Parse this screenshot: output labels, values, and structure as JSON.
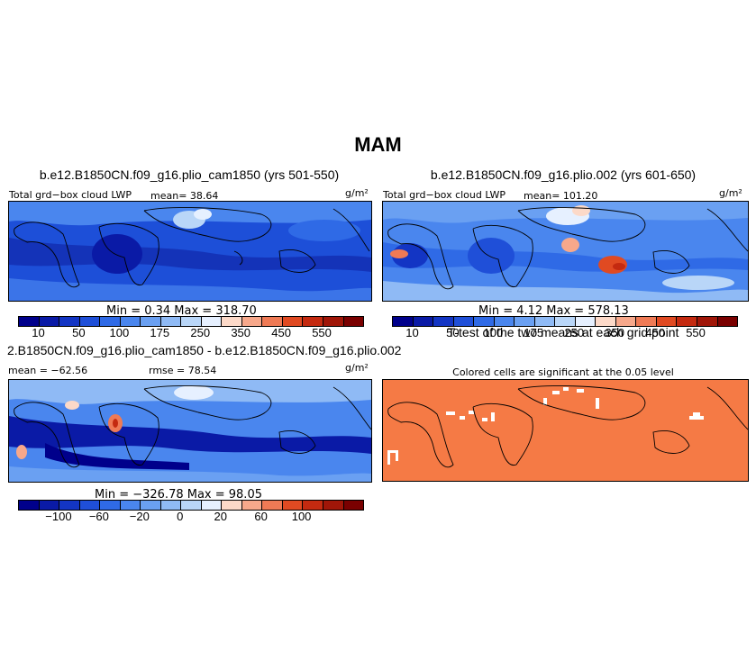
{
  "title": "MAM",
  "panels": {
    "p1": {
      "title": "b.e12.B1850CN.f09_g16.plio_cam1850 (yrs 501-550)",
      "left_label": "Total grd−box cloud LWP",
      "mean": "mean=  38.64",
      "units": "g/m²",
      "minmax": "Min =    0.34  Max = 318.70"
    },
    "p2": {
      "title": "b.e12.B1850CN.f09_g16.plio.002 (yrs 601-650)",
      "left_label": "Total grd−box cloud LWP",
      "mean": "mean= 101.20",
      "units": "g/m²",
      "minmax": "Min =    4.12  Max = 578.13"
    },
    "p3": {
      "title": "2.B1850CN.f09_g16.plio_cam1850 - b.e12.B1850CN.f09_g16.plio.002",
      "mean": "mean = −62.56",
      "rmse": "rmse =  78.54",
      "units": "g/m²",
      "minmax": "Min = −326.78  Max =   98.05"
    },
    "p4": {
      "title": "T-test of the two means at each grid point",
      "subtitle": "Colored cells are significant at the 0.05 level"
    }
  },
  "colorbars": {
    "abs_colors": [
      "#00008b",
      "#0a1aa6",
      "#1335c4",
      "#1f4fd8",
      "#2f6ae6",
      "#4a86ee",
      "#6aa0f2",
      "#8fbaf5",
      "#b9d6f8",
      "#e6f0ff",
      "#fcd9c8",
      "#f7a88b",
      "#ef7a55",
      "#e04a22",
      "#c42a10",
      "#a01608",
      "#7a0000"
    ],
    "abs_ticks": [
      "10",
      "50",
      "100",
      "175",
      "250",
      "350",
      "450",
      "550"
    ],
    "diff_colors": [
      "#00008b",
      "#0a1aa6",
      "#1335c4",
      "#1f4fd8",
      "#2f6ae6",
      "#4a86ee",
      "#6aa0f2",
      "#8fbaf5",
      "#b9d6f8",
      "#e6f0ff",
      "#fcd9c8",
      "#f7a88b",
      "#ef7a55",
      "#e04a22",
      "#c42a10",
      "#a01608",
      "#7a0000"
    ],
    "diff_ticks": [
      "−100",
      "−60",
      "−20",
      "0",
      "20",
      "60",
      "100"
    ]
  },
  "colors": {
    "ocean_deep": "#1c4fd6",
    "ocean_dark": "#0d2aa8",
    "ttest_fill": "#f57a45",
    "coast": "#000000"
  }
}
